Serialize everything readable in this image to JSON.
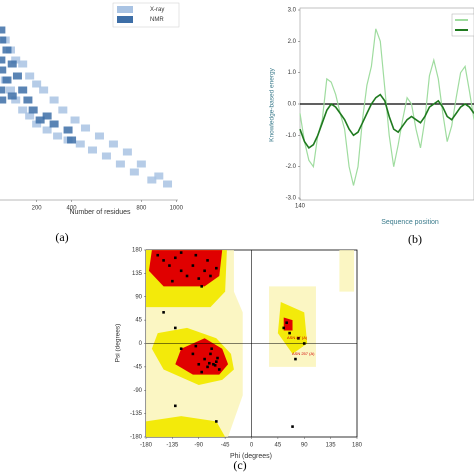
{
  "chart_data": [
    {
      "type": "scatter",
      "xlabel": "Number of residues",
      "xlim": [
        -10,
        1010
      ],
      "xticks": [
        200,
        400,
        800,
        1000
      ],
      "ylim": [
        0,
        100
      ],
      "yticks": [],
      "legend": "top-right",
      "series": [
        {
          "name": "X-ray",
          "color": "#a9c3e3",
          "x": [
            20,
            20,
            50,
            50,
            80,
            80,
            120,
            120,
            160,
            160,
            200,
            200,
            240,
            260,
            300,
            320,
            350,
            380,
            420,
            450,
            480,
            520,
            560,
            600,
            640,
            680,
            720,
            760,
            800,
            860,
            900,
            950
          ],
          "values": [
            80,
            60,
            75,
            55,
            70,
            50,
            68,
            45,
            62,
            42,
            58,
            38,
            55,
            35,
            50,
            32,
            45,
            30,
            40,
            28,
            36,
            25,
            32,
            22,
            28,
            18,
            24,
            14,
            18,
            10,
            12,
            8
          ]
        },
        {
          "name": "NMR",
          "color": "#3d6ea7",
          "x": [
            -5,
            -5,
            -5,
            0,
            0,
            0,
            30,
            30,
            60,
            60,
            90,
            120,
            150,
            180,
            220,
            260,
            300,
            380,
            400
          ],
          "values": [
            85,
            70,
            55,
            80,
            65,
            50,
            75,
            60,
            68,
            52,
            62,
            55,
            50,
            45,
            40,
            42,
            38,
            35,
            30
          ]
        }
      ]
    },
    {
      "type": "line",
      "xlabel": "Sequence position",
      "ylabel": "Knowledge-based energy",
      "xlim": [
        140,
        218
      ],
      "xticks": [
        140
      ],
      "ylim": [
        -3,
        3
      ],
      "yticks": [
        {
          "value": 3,
          "label": "3.0"
        },
        {
          "value": 2,
          "label": "2.0"
        },
        {
          "value": 1,
          "label": "1.0"
        },
        {
          "value": 0,
          "label": "0.0"
        },
        {
          "value": -1,
          "label": "-1.0"
        },
        {
          "value": -2,
          "label": "-2.0"
        },
        {
          "value": -3,
          "label": "-3.0"
        }
      ],
      "x": [
        140,
        142,
        144,
        146,
        148,
        150,
        152,
        154,
        156,
        158,
        160,
        162,
        164,
        166,
        168,
        170,
        172,
        174,
        176,
        178,
        180,
        182,
        184,
        186,
        188,
        190,
        192,
        194,
        196,
        198,
        200,
        202,
        204,
        206,
        208,
        210,
        212,
        214,
        216,
        218
      ],
      "series": [
        {
          "color": "#9fdc9f",
          "values": [
            -0.3,
            -1.2,
            -1.8,
            -2.0,
            -1.0,
            -0.5,
            0.8,
            0.7,
            0.3,
            -0.3,
            -0.8,
            -2.0,
            -2.6,
            -2.0,
            -0.5,
            0.6,
            1.2,
            2.4,
            2.0,
            0.5,
            -1.0,
            -2.0,
            -1.3,
            -0.5,
            0.2,
            0.0,
            -0.8,
            -1.4,
            -0.5,
            0.9,
            1.4,
            0.8,
            -0.3,
            -1.2,
            -0.7,
            0.2,
            1.0,
            1.2,
            0.4,
            -0.5
          ]
        },
        {
          "color": "#1f7a1f",
          "values": [
            -0.8,
            -1.2,
            -1.4,
            -1.3,
            -1.0,
            -0.6,
            -0.2,
            0.0,
            -0.1,
            -0.3,
            -0.5,
            -0.8,
            -1.0,
            -0.9,
            -0.6,
            -0.3,
            0.0,
            0.2,
            0.3,
            0.1,
            -0.4,
            -0.8,
            -0.9,
            -0.7,
            -0.5,
            -0.4,
            -0.5,
            -0.6,
            -0.4,
            -0.1,
            0.0,
            0.1,
            -0.1,
            -0.4,
            -0.5,
            -0.3,
            -0.1,
            0.0,
            -0.1,
            -0.3
          ]
        }
      ]
    },
    {
      "type": "scatter",
      "xlabel": "Phi (degrees)",
      "ylabel": "Psi (degrees)",
      "xlim": [
        -180,
        180
      ],
      "xticks": [
        -180,
        -135,
        -90,
        -45,
        0,
        45,
        90,
        135,
        180
      ],
      "ylim": [
        -180,
        180
      ],
      "yticks": [
        180,
        135,
        90,
        45,
        0,
        -45,
        -90,
        -135,
        -180
      ],
      "annotations": [
        "ASN 87 (A)",
        "ASN 257 (A)"
      ],
      "series": [
        {
          "color": "#000000",
          "x": [
            -150,
            -140,
            -130,
            -120,
            -110,
            -100,
            -90,
            -80,
            -75,
            -70,
            -60,
            -135,
            -160,
            -120,
            -95,
            -85,
            -90,
            -80,
            -75,
            -70,
            -65,
            -60,
            -55,
            -68,
            -100,
            -85,
            -120,
            -62,
            -58,
            -72,
            -95,
            -150,
            -130,
            60,
            55,
            65,
            80,
            90,
            75,
            -60,
            70,
            -130
          ],
          "values": [
            160,
            150,
            165,
            140,
            130,
            150,
            125,
            140,
            160,
            130,
            145,
            120,
            170,
            175,
            170,
            110,
            -40,
            -30,
            -45,
            -20,
            -40,
            -35,
            -50,
            -10,
            -20,
            -55,
            -10,
            -42,
            -28,
            -38,
            -5,
            60,
            30,
            40,
            30,
            20,
            10,
            0,
            -30,
            -150,
            -160,
            -120
          ]
        }
      ]
    }
  ]
}
